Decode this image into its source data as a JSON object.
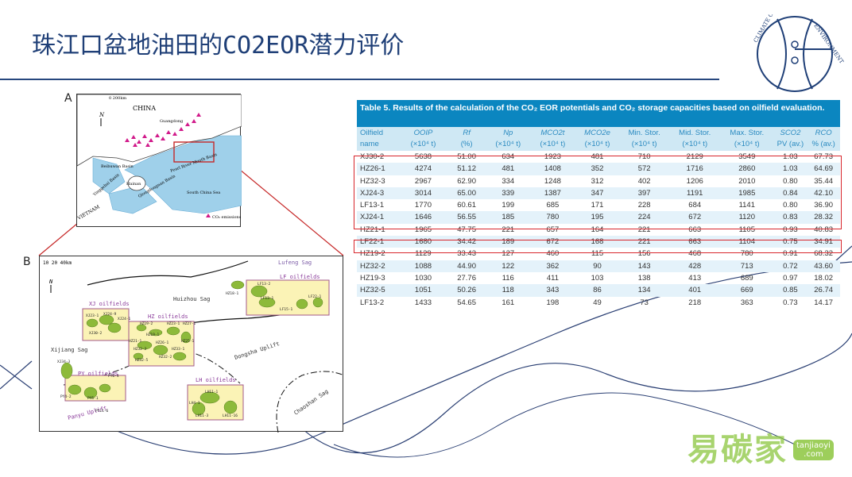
{
  "slide": {
    "title": "珠江口盆地油田的CO2EOR潜力评价",
    "logo_text_left": "CLIMATE CHANGE",
    "logo_text_right": "ENVIRONMENT",
    "watermark": "易碳家",
    "watermark_site": "tanjiaoyi\n.com"
  },
  "figure_a": {
    "label": "A",
    "scale": "0      200km",
    "north": "N",
    "labels": {
      "china": "CHINA",
      "guangdong": "Guangdong",
      "beibuwan": "Beibuwan Basin",
      "hainan": "Hainan",
      "yinggehai": "Yinggehai Basin",
      "qiongdongnan": "Qiongdongnan Basin",
      "prmb": "Pearl River Mouth Basin",
      "scs": "South China Sea",
      "vietnam": "VIETNAM",
      "legend": "CO₂ emissions"
    },
    "legend_color": "#d11a8a"
  },
  "figure_b": {
    "label": "B",
    "scale": "10    20    40km",
    "north": "N",
    "labels": {
      "lufeng_sag": "Lufeng Sag",
      "lf_oilfields": "LF oilfields",
      "huizhou_sag": "Huizhou Sag",
      "xj_oilfields": "XJ oilfields",
      "hz_oilfields": "HZ oilfields",
      "xijiang_sag": "Xijiang Sag",
      "dongsha_uplift": "Dongsha Uplift",
      "py_oilfields": "PY oilfields",
      "lh_oilfields": "LH oilfields",
      "panyu_uplift": "Panyu Uplift",
      "chaoshan_sag": "Chaoshan Sag"
    },
    "field_names": {
      "lf": [
        "LF13-2",
        "LF13-1",
        "LF22-1",
        "LF15-1",
        "HZ18-1"
      ],
      "xj": [
        "XJ23-1",
        "XJ24-9",
        "XJ30-2",
        "XJ24-1",
        "XJ34-3"
      ],
      "hz": [
        "HZ19-2",
        "HZ19-1",
        "HZ26-1",
        "HZ32-2",
        "HZ33-1",
        "HZ32-3",
        "HZ32-5",
        "HZ27-1",
        "HZ21-1",
        "HZ23-1",
        "HZ25-1"
      ],
      "py": [
        "PY4-2",
        "PY5-1",
        "PY6-4",
        "PY11-6"
      ],
      "lh": [
        "LH11-1",
        "LH4-1",
        "LH11-3",
        "LH11-16"
      ]
    }
  },
  "table": {
    "caption": "Table 5.  Results of the calculation of the CO₂ EOR potentials and CO₂ storage capacities based on oilfield evaluation.",
    "headers_top": [
      "Oilfield",
      "OOIP",
      "Rf",
      "Np",
      "MCO2t",
      "MCO2e",
      "Min. Stor.",
      "Mid. Stor.",
      "Max. Stor.",
      "SCO2",
      "RCO"
    ],
    "headers_bottom": [
      "name",
      "(×10⁴ t)",
      "(%)",
      "(×10⁴ t)",
      "(×10⁴ t)",
      "(×10⁴ t)",
      "(×10⁴ t)",
      "(×10⁴ t)",
      "(×10⁴ t)",
      "PV (av.)",
      "% (av.)"
    ],
    "rows": [
      [
        "XJ30-2",
        "5638",
        "51.00",
        "634",
        "1923",
        "481",
        "710",
        "2129",
        "3549",
        "1.03",
        "67.73"
      ],
      [
        "HZ26-1",
        "4274",
        "51.12",
        "481",
        "1408",
        "352",
        "572",
        "1716",
        "2860",
        "1.03",
        "64.69"
      ],
      [
        "HZ32-3",
        "2967",
        "62.90",
        "334",
        "1248",
        "312",
        "402",
        "1206",
        "2010",
        "0.80",
        "35.44"
      ],
      [
        "XJ24-3",
        "3014",
        "65.00",
        "339",
        "1387",
        "347",
        "397",
        "1191",
        "1985",
        "0.84",
        "42.10"
      ],
      [
        "LF13-1",
        "1770",
        "60.61",
        "199",
        "685",
        "171",
        "228",
        "684",
        "1141",
        "0.80",
        "36.90"
      ],
      [
        "XJ24-1",
        "1646",
        "56.55",
        "185",
        "780",
        "195",
        "224",
        "672",
        "1120",
        "0.83",
        "28.32"
      ],
      [
        "HZ21-1",
        "1965",
        "47.75",
        "221",
        "657",
        "164",
        "221",
        "663",
        "1105",
        "0.93",
        "40.83"
      ],
      [
        "LF22-1",
        "1680",
        "34.42",
        "189",
        "672",
        "168",
        "221",
        "663",
        "1104",
        "0.75",
        "34.91"
      ],
      [
        "HZ19-2",
        "1129",
        "33.43",
        "127",
        "460",
        "115",
        "156",
        "468",
        "780",
        "0.91",
        "68.32"
      ],
      [
        "HZ32-2",
        "1088",
        "44.90",
        "122",
        "362",
        "90",
        "143",
        "428",
        "713",
        "0.72",
        "43.60"
      ],
      [
        "HZ19-3",
        "1030",
        "27.76",
        "116",
        "411",
        "103",
        "138",
        "413",
        "689",
        "0.97",
        "18.02"
      ],
      [
        "HZ32-5",
        "1051",
        "50.26",
        "118",
        "343",
        "86",
        "134",
        "401",
        "669",
        "0.85",
        "26.74"
      ],
      [
        "LF13-2",
        "1433",
        "54.65",
        "161",
        "198",
        "49",
        "73",
        "218",
        "363",
        "0.73",
        "14.17"
      ]
    ]
  },
  "colors": {
    "title": "#1f3f77",
    "caption_bg": "#0b86c0",
    "header_text": "#2a8ac0",
    "highlight_box": "#d8262c",
    "oilfield_fill": "#8dba3a",
    "oilfield_box": "#fbf3b6"
  }
}
